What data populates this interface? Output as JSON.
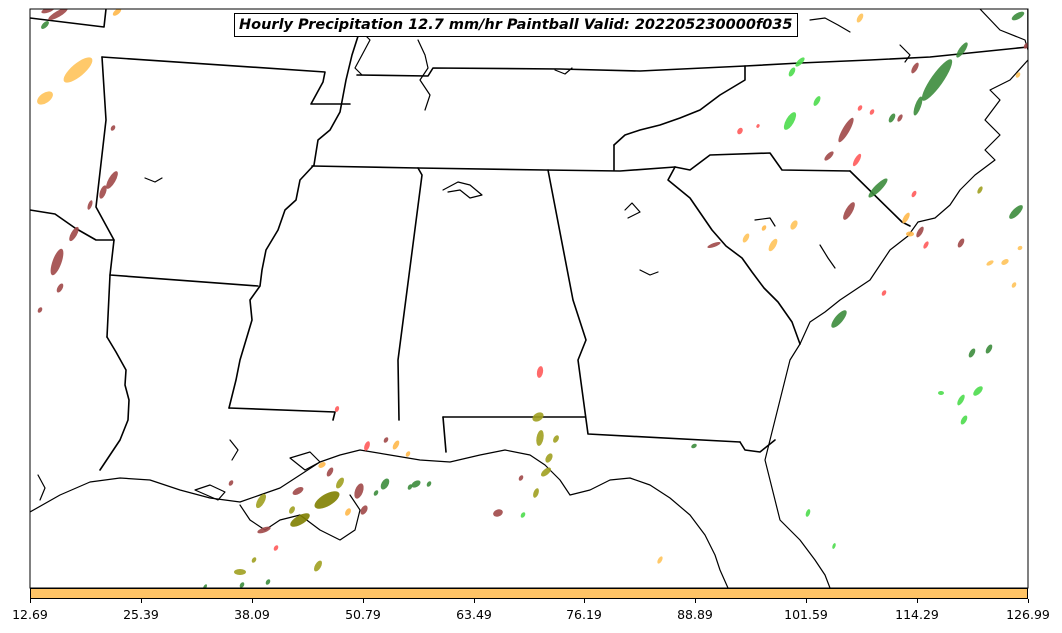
{
  "title": "Hourly Precipitation 12.7 mm/hr Paintball Valid: 202205230000f035",
  "colors": {
    "brown": "#a04848",
    "orange": "#ffb84a",
    "light_orange": "#ffc35a",
    "green": "#3c8c3c",
    "bright_green": "#4cdc4c",
    "red": "#ff5a5a",
    "olive": "#a0a020",
    "dark_olive": "#808000",
    "colorbar_fill": "#ffc466"
  },
  "colorbar": {
    "ticks": [
      "12.69",
      "25.39",
      "38.09",
      "50.79",
      "63.49",
      "76.19",
      "88.89",
      "101.59",
      "114.29",
      "126.99"
    ]
  },
  "map": {
    "region": "Southeastern United States",
    "basemap": "state boundaries and coastline",
    "paintball_blobs": [
      {
        "c": "brown",
        "lon": 58,
        "lat": 14,
        "len": 22,
        "w": 6,
        "a": -30
      },
      {
        "c": "brown",
        "lon": 48,
        "lat": 10,
        "len": 14,
        "w": 5,
        "a": -20
      },
      {
        "c": "orange",
        "lon": 117,
        "lat": 12,
        "len": 10,
        "w": 5,
        "a": -40
      },
      {
        "c": "green",
        "lon": 45,
        "lat": 25,
        "len": 10,
        "w": 5,
        "a": -45
      },
      {
        "c": "light_orange",
        "lon": 78,
        "lat": 70,
        "len": 36,
        "w": 13,
        "a": -40
      },
      {
        "c": "light_orange",
        "lon": 45,
        "lat": 98,
        "len": 18,
        "w": 10,
        "a": -35
      },
      {
        "c": "brown",
        "lon": 112,
        "lat": 180,
        "len": 20,
        "w": 7,
        "a": -60
      },
      {
        "c": "brown",
        "lon": 103,
        "lat": 192,
        "len": 14,
        "w": 6,
        "a": -70
      },
      {
        "c": "brown",
        "lon": 90,
        "lat": 205,
        "len": 10,
        "w": 4,
        "a": -70
      },
      {
        "c": "brown",
        "lon": 74,
        "lat": 234,
        "len": 16,
        "w": 6,
        "a": -60
      },
      {
        "c": "brown",
        "lon": 57,
        "lat": 262,
        "len": 28,
        "w": 9,
        "a": -70
      },
      {
        "c": "brown",
        "lon": 60,
        "lat": 288,
        "len": 10,
        "w": 5,
        "a": -60
      },
      {
        "c": "brown",
        "lon": 40,
        "lat": 310,
        "len": 6,
        "w": 4,
        "a": -60
      },
      {
        "c": "brown",
        "lon": 113,
        "lat": 128,
        "len": 6,
        "w": 4,
        "a": -60
      },
      {
        "c": "light_orange",
        "lon": 860,
        "lat": 18,
        "len": 10,
        "w": 5,
        "a": -60
      },
      {
        "c": "bright_green",
        "lon": 800,
        "lat": 62,
        "len": 12,
        "w": 5,
        "a": -45
      },
      {
        "c": "bright_green",
        "lon": 792,
        "lat": 72,
        "len": 10,
        "w": 5,
        "a": -60
      },
      {
        "c": "bright_green",
        "lon": 817,
        "lat": 101,
        "len": 11,
        "w": 5,
        "a": -60
      },
      {
        "c": "bright_green",
        "lon": 790,
        "lat": 121,
        "len": 20,
        "w": 8,
        "a": -60
      },
      {
        "c": "brown",
        "lon": 846,
        "lat": 130,
        "len": 28,
        "w": 7,
        "a": -60
      },
      {
        "c": "brown",
        "lon": 829,
        "lat": 156,
        "len": 12,
        "w": 5,
        "a": -45
      },
      {
        "c": "red",
        "lon": 857,
        "lat": 160,
        "len": 14,
        "w": 5,
        "a": -60
      },
      {
        "c": "green",
        "lon": 878,
        "lat": 188,
        "len": 26,
        "w": 7,
        "a": -45
      },
      {
        "c": "brown",
        "lon": 849,
        "lat": 211,
        "len": 20,
        "w": 7,
        "a": -60
      },
      {
        "c": "red",
        "lon": 860,
        "lat": 108,
        "len": 6,
        "w": 4,
        "a": -60
      },
      {
        "c": "red",
        "lon": 872,
        "lat": 112,
        "len": 6,
        "w": 4,
        "a": -60
      },
      {
        "c": "red",
        "lon": 740,
        "lat": 131,
        "len": 7,
        "w": 5,
        "a": -60
      },
      {
        "c": "red",
        "lon": 758,
        "lat": 126,
        "len": 4,
        "w": 3,
        "a": -60
      },
      {
        "c": "green",
        "lon": 937,
        "lat": 80,
        "len": 50,
        "w": 12,
        "a": -55
      },
      {
        "c": "green",
        "lon": 962,
        "lat": 50,
        "len": 18,
        "w": 6,
        "a": -55
      },
      {
        "c": "brown",
        "lon": 915,
        "lat": 68,
        "len": 12,
        "w": 5,
        "a": -60
      },
      {
        "c": "green",
        "lon": 918,
        "lat": 106,
        "len": 20,
        "w": 6,
        "a": -70
      },
      {
        "c": "brown",
        "lon": 900,
        "lat": 118,
        "len": 8,
        "w": 4,
        "a": -60
      },
      {
        "c": "green",
        "lon": 892,
        "lat": 118,
        "len": 10,
        "w": 5,
        "a": -60
      },
      {
        "c": "green",
        "lon": 1018,
        "lat": 16,
        "len": 14,
        "w": 6,
        "a": -30
      },
      {
        "c": "brown",
        "lon": 1026,
        "lat": 46,
        "len": 6,
        "w": 4,
        "a": -60
      },
      {
        "c": "light_orange",
        "lon": 1018,
        "lat": 75,
        "len": 6,
        "w": 4,
        "a": -60
      },
      {
        "c": "green",
        "lon": 1016,
        "lat": 212,
        "len": 18,
        "w": 7,
        "a": -45
      },
      {
        "c": "olive",
        "lon": 980,
        "lat": 190,
        "len": 8,
        "w": 4,
        "a": -60
      },
      {
        "c": "red",
        "lon": 914,
        "lat": 194,
        "len": 7,
        "w": 4,
        "a": -60
      },
      {
        "c": "orange",
        "lon": 906,
        "lat": 218,
        "len": 12,
        "w": 5,
        "a": -60
      },
      {
        "c": "orange",
        "lon": 910,
        "lat": 234,
        "len": 8,
        "w": 5,
        "a": 0
      },
      {
        "c": "brown",
        "lon": 920,
        "lat": 232,
        "len": 12,
        "w": 5,
        "a": -60
      },
      {
        "c": "red",
        "lon": 926,
        "lat": 245,
        "len": 8,
        "w": 4,
        "a": -60
      },
      {
        "c": "brown",
        "lon": 961,
        "lat": 243,
        "len": 10,
        "w": 5,
        "a": -60
      },
      {
        "c": "light_orange",
        "lon": 1005,
        "lat": 262,
        "len": 8,
        "w": 5,
        "a": -30
      },
      {
        "c": "light_orange",
        "lon": 990,
        "lat": 263,
        "len": 8,
        "w": 4,
        "a": -30
      },
      {
        "c": "light_orange",
        "lon": 1020,
        "lat": 248,
        "len": 5,
        "w": 4,
        "a": -30
      },
      {
        "c": "light_orange",
        "lon": 1014,
        "lat": 285,
        "len": 6,
        "w": 4,
        "a": -60
      },
      {
        "c": "red",
        "lon": 884,
        "lat": 293,
        "len": 6,
        "w": 4,
        "a": -60
      },
      {
        "c": "green",
        "lon": 839,
        "lat": 319,
        "len": 22,
        "w": 8,
        "a": -50
      },
      {
        "c": "green",
        "lon": 972,
        "lat": 353,
        "len": 10,
        "w": 5,
        "a": -60
      },
      {
        "c": "green",
        "lon": 989,
        "lat": 349,
        "len": 10,
        "w": 5,
        "a": -60
      },
      {
        "c": "bright_green",
        "lon": 978,
        "lat": 391,
        "len": 12,
        "w": 6,
        "a": -45
      },
      {
        "c": "bright_green",
        "lon": 961,
        "lat": 400,
        "len": 12,
        "w": 5,
        "a": -60
      },
      {
        "c": "bright_green",
        "lon": 964,
        "lat": 420,
        "len": 10,
        "w": 5,
        "a": -60
      },
      {
        "c": "bright_green",
        "lon": 941,
        "lat": 393,
        "len": 6,
        "w": 4,
        "a": 0
      },
      {
        "c": "light_orange",
        "lon": 794,
        "lat": 225,
        "len": 10,
        "w": 6,
        "a": -60
      },
      {
        "c": "light_orange",
        "lon": 773,
        "lat": 245,
        "len": 14,
        "w": 6,
        "a": -60
      },
      {
        "c": "light_orange",
        "lon": 746,
        "lat": 238,
        "len": 10,
        "w": 5,
        "a": -60
      },
      {
        "c": "orange",
        "lon": 764,
        "lat": 228,
        "len": 6,
        "w": 4,
        "a": -60
      },
      {
        "c": "brown",
        "lon": 714,
        "lat": 245,
        "len": 14,
        "w": 4,
        "a": -20
      },
      {
        "c": "red",
        "lon": 540,
        "lat": 372,
        "len": 12,
        "w": 6,
        "a": -80
      },
      {
        "c": "olive",
        "lon": 538,
        "lat": 417,
        "len": 12,
        "w": 8,
        "a": -30
      },
      {
        "c": "olive",
        "lon": 540,
        "lat": 438,
        "len": 16,
        "w": 7,
        "a": -80
      },
      {
        "c": "olive",
        "lon": 556,
        "lat": 439,
        "len": 8,
        "w": 5,
        "a": -60
      },
      {
        "c": "olive",
        "lon": 549,
        "lat": 458,
        "len": 10,
        "w": 6,
        "a": -60
      },
      {
        "c": "olive",
        "lon": 546,
        "lat": 472,
        "len": 12,
        "w": 6,
        "a": -40
      },
      {
        "c": "brown",
        "lon": 521,
        "lat": 478,
        "len": 6,
        "w": 4,
        "a": -60
      },
      {
        "c": "olive",
        "lon": 536,
        "lat": 493,
        "len": 10,
        "w": 5,
        "a": -70
      },
      {
        "c": "brown",
        "lon": 498,
        "lat": 513,
        "len": 10,
        "w": 7,
        "a": -20
      },
      {
        "c": "bright_green",
        "lon": 523,
        "lat": 515,
        "len": 6,
        "w": 4,
        "a": -60
      },
      {
        "c": "green",
        "lon": 694,
        "lat": 446,
        "len": 6,
        "w": 4,
        "a": -30
      },
      {
        "c": "bright_green",
        "lon": 808,
        "lat": 513,
        "len": 8,
        "w": 4,
        "a": -70
      },
      {
        "c": "bright_green",
        "lon": 834,
        "lat": 546,
        "len": 6,
        "w": 3,
        "a": -70
      },
      {
        "c": "light_orange",
        "lon": 660,
        "lat": 560,
        "len": 8,
        "w": 4,
        "a": -60
      },
      {
        "c": "red",
        "lon": 337,
        "lat": 409,
        "len": 6,
        "w": 4,
        "a": -70
      },
      {
        "c": "red",
        "lon": 367,
        "lat": 446,
        "len": 10,
        "w": 5,
        "a": -70
      },
      {
        "c": "brown",
        "lon": 386,
        "lat": 440,
        "len": 6,
        "w": 4,
        "a": -60
      },
      {
        "c": "orange",
        "lon": 396,
        "lat": 445,
        "len": 10,
        "w": 5,
        "a": -60
      },
      {
        "c": "orange",
        "lon": 408,
        "lat": 454,
        "len": 6,
        "w": 4,
        "a": -60
      },
      {
        "c": "orange",
        "lon": 322,
        "lat": 465,
        "len": 8,
        "w": 5,
        "a": -30
      },
      {
        "c": "brown",
        "lon": 330,
        "lat": 472,
        "len": 10,
        "w": 5,
        "a": -60
      },
      {
        "c": "dark_olive",
        "lon": 327,
        "lat": 500,
        "len": 28,
        "w": 12,
        "a": -30
      },
      {
        "c": "olive",
        "lon": 340,
        "lat": 483,
        "len": 12,
        "w": 6,
        "a": -60
      },
      {
        "c": "brown",
        "lon": 359,
        "lat": 491,
        "len": 16,
        "w": 8,
        "a": -70
      },
      {
        "c": "brown",
        "lon": 364,
        "lat": 510,
        "len": 10,
        "w": 6,
        "a": -60
      },
      {
        "c": "orange",
        "lon": 348,
        "lat": 512,
        "len": 8,
        "w": 5,
        "a": -60
      },
      {
        "c": "green",
        "lon": 385,
        "lat": 484,
        "len": 12,
        "w": 7,
        "a": -60
      },
      {
        "c": "green",
        "lon": 376,
        "lat": 493,
        "len": 6,
        "w": 4,
        "a": -60
      },
      {
        "c": "green",
        "lon": 416,
        "lat": 484,
        "len": 10,
        "w": 6,
        "a": -30
      },
      {
        "c": "green",
        "lon": 410,
        "lat": 487,
        "len": 6,
        "w": 4,
        "a": -60
      },
      {
        "c": "green",
        "lon": 429,
        "lat": 484,
        "len": 6,
        "w": 4,
        "a": -60
      },
      {
        "c": "brown",
        "lon": 298,
        "lat": 491,
        "len": 12,
        "w": 6,
        "a": -30
      },
      {
        "c": "olive",
        "lon": 261,
        "lat": 501,
        "len": 16,
        "w": 7,
        "a": -60
      },
      {
        "c": "dark_olive",
        "lon": 300,
        "lat": 520,
        "len": 22,
        "w": 9,
        "a": -30
      },
      {
        "c": "olive",
        "lon": 292,
        "lat": 510,
        "len": 8,
        "w": 5,
        "a": -60
      },
      {
        "c": "brown",
        "lon": 264,
        "lat": 530,
        "len": 14,
        "w": 5,
        "a": -20
      },
      {
        "c": "red",
        "lon": 276,
        "lat": 548,
        "len": 6,
        "w": 4,
        "a": -60
      },
      {
        "c": "olive",
        "lon": 240,
        "lat": 572,
        "len": 12,
        "w": 6,
        "a": 0
      },
      {
        "c": "olive",
        "lon": 318,
        "lat": 566,
        "len": 12,
        "w": 6,
        "a": -60
      },
      {
        "c": "olive",
        "lon": 254,
        "lat": 560,
        "len": 6,
        "w": 4,
        "a": -60
      },
      {
        "c": "green",
        "lon": 268,
        "lat": 582,
        "len": 6,
        "w": 4,
        "a": -60
      },
      {
        "c": "green",
        "lon": 242,
        "lat": 585,
        "len": 6,
        "w": 4,
        "a": -60
      },
      {
        "c": "brown",
        "lon": 231,
        "lat": 483,
        "len": 6,
        "w": 4,
        "a": -60
      },
      {
        "c": "green",
        "lon": 205,
        "lat": 587,
        "len": 6,
        "w": 3,
        "a": -60
      }
    ]
  }
}
